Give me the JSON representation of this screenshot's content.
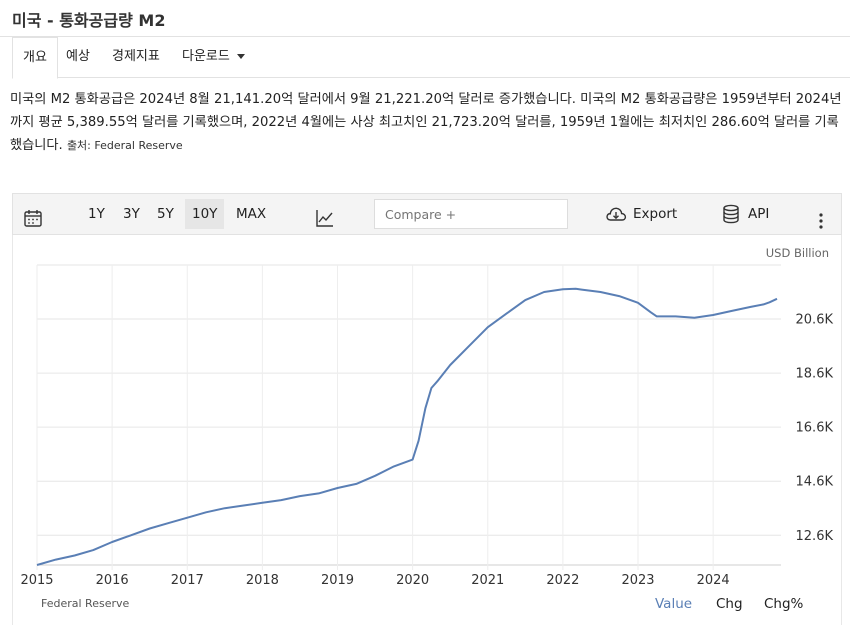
{
  "page": {
    "title": "미국 - 통화공급량 M2"
  },
  "tabs": [
    {
      "label": "개요",
      "active": true
    },
    {
      "label": "예상"
    },
    {
      "label": "경제지표"
    },
    {
      "label": "다운로드"
    }
  ],
  "description": {
    "text": "미국의 M2 통화공급은 2024년 8월 21,141.20억 달러에서 9월 21,221.20억 달러로 증가했습니다. 미국의 M2 통화공급량은 1959년부터 2024년까지 평균 5,389.55억 달러를 기록했으며, 2022년 4월에는 사상 최고치인 21,723.20억 달러를, 1959년 1월에는 최저치인 286.60억 달러를 기록했습니다.",
    "source_label": "출처: Federal Reserve"
  },
  "toolbar": {
    "calendar_icon": "calendar-icon",
    "ranges": [
      "1Y",
      "3Y",
      "5Y",
      "10Y",
      "MAX"
    ],
    "selected_range": "10Y",
    "chart_type_icon": "line-chart-icon",
    "compare_placeholder": "Compare +",
    "export_label": "Export",
    "api_label": "API",
    "more_icon": "more-vertical-icon"
  },
  "chart_data": {
    "type": "line",
    "unit_label": "USD Billion",
    "yticks": [
      "12.6K",
      "14.6K",
      "16.6K",
      "18.6K",
      "20.6K"
    ],
    "ytick_values": [
      12600,
      14600,
      16600,
      18600,
      20600
    ],
    "xticks": [
      "2015",
      "2016",
      "2017",
      "2018",
      "2019",
      "2020",
      "2021",
      "2022",
      "2023",
      "2024"
    ],
    "ylim": [
      11500,
      22600
    ],
    "xlim": [
      2015.0,
      2024.85
    ],
    "grid": true,
    "line_color": "#5a7fb5",
    "series": [
      {
        "x": [
          2015.0,
          2015.25,
          2015.5,
          2015.75,
          2016.0,
          2016.25,
          2016.5,
          2016.75,
          2017.0,
          2017.25,
          2017.5,
          2017.75,
          2018.0,
          2018.25,
          2018.5,
          2018.75,
          2019.0,
          2019.25,
          2019.5,
          2019.75,
          2020.0,
          2020.08,
          2020.17,
          2020.25,
          2020.33,
          2020.5,
          2020.75,
          2021.0,
          2021.25,
          2021.5,
          2021.75,
          2022.0,
          2022.17,
          2022.25,
          2022.5,
          2022.75,
          2023.0,
          2023.17,
          2023.25,
          2023.5,
          2023.75,
          2024.0,
          2024.25,
          2024.5,
          2024.67,
          2024.75,
          2024.85
        ],
        "y": [
          11500,
          11700,
          11850,
          12050,
          12350,
          12600,
          12850,
          13050,
          13250,
          13450,
          13600,
          13700,
          13800,
          13900,
          14050,
          14150,
          14350,
          14500,
          14800,
          15150,
          15400,
          16100,
          17300,
          18050,
          18300,
          18900,
          19600,
          20300,
          20800,
          21300,
          21600,
          21700,
          21720,
          21690,
          21600,
          21450,
          21200,
          20850,
          20700,
          20700,
          20650,
          20750,
          20900,
          21050,
          21141.2,
          21221.2,
          21350
        ]
      }
    ]
  },
  "footer": {
    "source": "Federal Reserve",
    "tabs": [
      {
        "label": "Value",
        "active": true
      },
      {
        "label": "Chg"
      },
      {
        "label": "Chg%"
      }
    ]
  }
}
